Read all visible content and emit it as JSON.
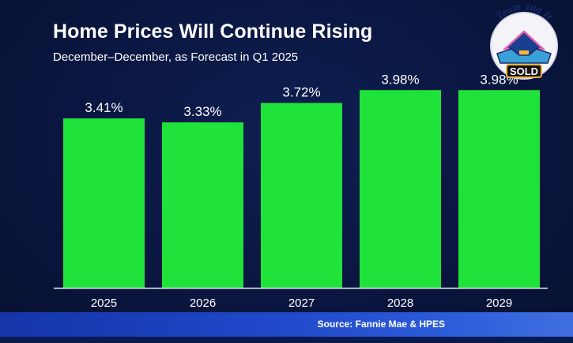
{
  "header": {
    "title": "Home Prices Will Continue Rising",
    "subtitle": "December–December, as Forecast in Q1 2025"
  },
  "footer": {
    "source": "Source: Fannie Mae & HPES"
  },
  "logo": {
    "top_text": "Team Tag It",
    "bottom_text": "SOLD"
  },
  "colors": {
    "bar": "#1fe23a",
    "background": "#0a1640",
    "footer": "#1f47c8"
  },
  "chart_data": {
    "type": "bar",
    "categories": [
      "2025",
      "2026",
      "2027",
      "2028",
      "2029"
    ],
    "values": [
      3.41,
      3.33,
      3.72,
      3.98,
      3.98
    ],
    "data_labels": [
      "3.41%",
      "3.33%",
      "3.72%",
      "3.98%",
      "3.98%"
    ],
    "title": "Home Prices Will Continue Rising",
    "subtitle": "December–December, as Forecast in Q1 2025",
    "xlabel": "",
    "ylabel": "",
    "ylim": [
      0,
      5.0
    ],
    "grid": false,
    "legend": "none"
  }
}
